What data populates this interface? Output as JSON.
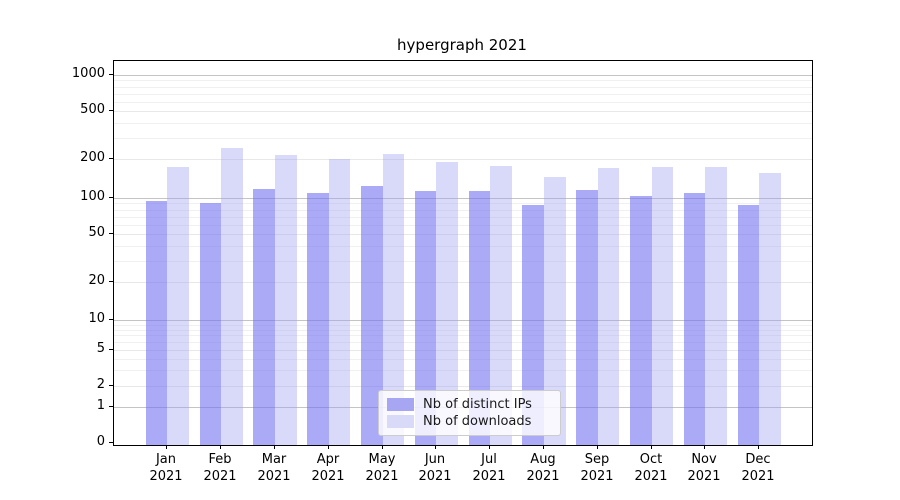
{
  "title": "hypergraph 2021",
  "chart_data": {
    "type": "bar",
    "title": "hypergraph 2021",
    "x_axis": {
      "months": [
        "Jan",
        "Feb",
        "Mar",
        "Apr",
        "May",
        "Jun",
        "Jul",
        "Aug",
        "Sep",
        "Oct",
        "Nov",
        "Dec"
      ],
      "year": "2021"
    },
    "y_axis": {
      "scale": "symlog",
      "tick_values": [
        0,
        1,
        2,
        5,
        10,
        20,
        50,
        100,
        200,
        500,
        1000
      ],
      "tick_labels": [
        "0",
        "1",
        "2",
        "5",
        "10",
        "20",
        "50",
        "100",
        "200",
        "500",
        "1000"
      ],
      "grid": "on"
    },
    "series": [
      {
        "name": "Nb of distinct IPs",
        "color": "rgba(113,113,242,0.6)",
        "legend_color": "#a6a6f2",
        "values": [
          94,
          91,
          118,
          110,
          123,
          114,
          113,
          88,
          116,
          104,
          109,
          87
        ]
      },
      {
        "name": "Nb of downloads",
        "color": "rgba(160,160,243,0.4)",
        "legend_color": "#d9d9f8",
        "values": [
          175,
          245,
          215,
          200,
          222,
          189,
          177,
          144,
          172,
          175,
          175,
          157
        ]
      }
    ],
    "legend": {
      "position": "bottom-center",
      "entries": [
        "Nb of distinct IPs",
        "Nb of downloads"
      ]
    },
    "colors": {
      "grid_major": "#c4c4c4",
      "grid_mid": "#e8e8e8",
      "grid_faint": "#f0f0f0",
      "axis": "#000000"
    }
  }
}
